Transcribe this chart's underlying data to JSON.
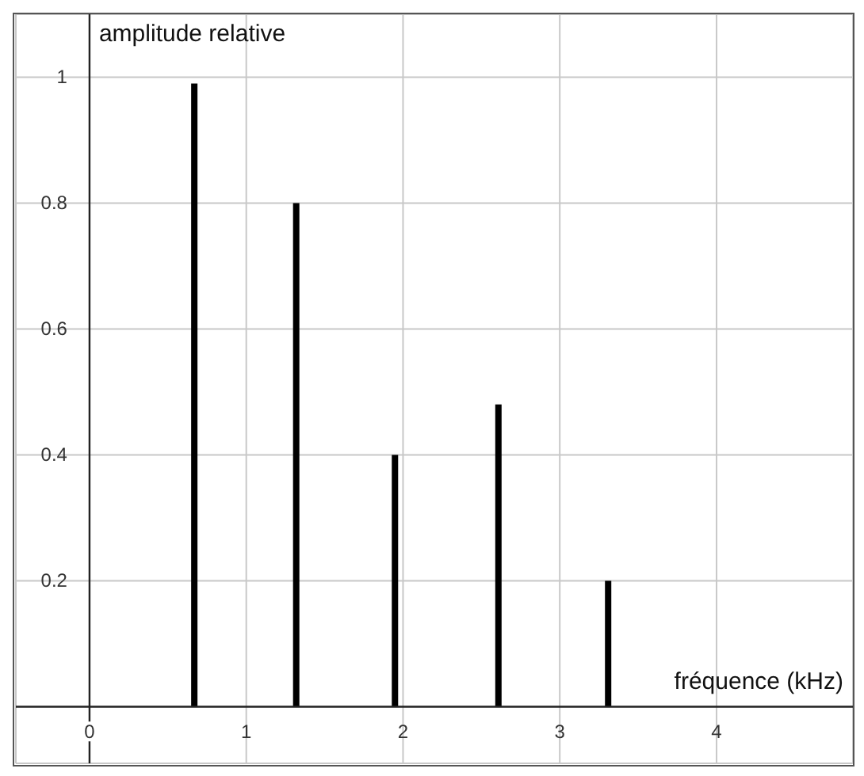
{
  "chart_data": {
    "type": "bar",
    "xlabel": "fréquence (kHz)",
    "ylabel": "amplitude relative",
    "x": [
      0.67,
      1.32,
      1.95,
      2.61,
      3.31
    ],
    "values": [
      0.99,
      0.8,
      0.4,
      0.48,
      0.2
    ],
    "color": "#000000",
    "xlim": [
      -0.47,
      4.87
    ],
    "ylim": [
      -0.09,
      1.1
    ],
    "xticks": [
      0,
      1,
      2,
      3,
      4
    ],
    "yticks": [
      0.2,
      0.4,
      0.6,
      0.8,
      1
    ],
    "grid": true
  }
}
